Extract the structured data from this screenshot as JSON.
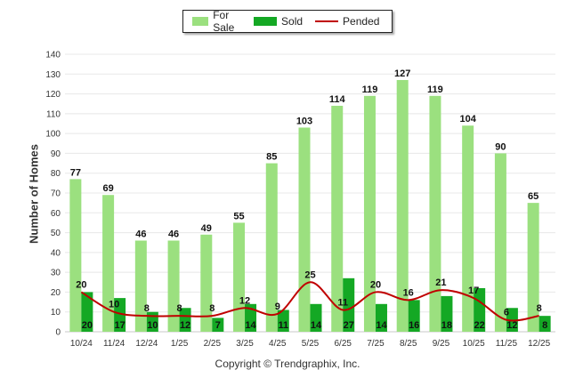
{
  "chart_data": {
    "type": "bar",
    "title": "",
    "xlabel": "",
    "ylabel": "Number of Homes",
    "ylim": [
      0,
      140
    ],
    "ytick_step": 10,
    "grid": true,
    "legend_position": "top-center",
    "categories": [
      "10/24",
      "11/24",
      "12/24",
      "1/25",
      "2/25",
      "3/25",
      "4/25",
      "5/25",
      "6/25",
      "7/25",
      "8/25",
      "9/25",
      "10/25",
      "11/25",
      "12/25"
    ],
    "series": [
      {
        "name": "For Sale",
        "kind": "bar",
        "color": "#9be07f",
        "values": [
          77,
          69,
          46,
          46,
          49,
          55,
          85,
          103,
          114,
          119,
          127,
          119,
          104,
          90,
          65
        ]
      },
      {
        "name": "Sold",
        "kind": "bar",
        "color": "#14a824",
        "values": [
          20,
          17,
          10,
          12,
          7,
          14,
          11,
          14,
          27,
          14,
          16,
          18,
          22,
          12,
          8
        ]
      },
      {
        "name": "Pended",
        "kind": "line",
        "color": "#c00000",
        "values": [
          20,
          10,
          8,
          8,
          8,
          12,
          9,
          25,
          11,
          20,
          16,
          21,
          17,
          6,
          8
        ]
      }
    ]
  },
  "footer": {
    "copyright": "Copyright © Trendgraphix, Inc."
  }
}
